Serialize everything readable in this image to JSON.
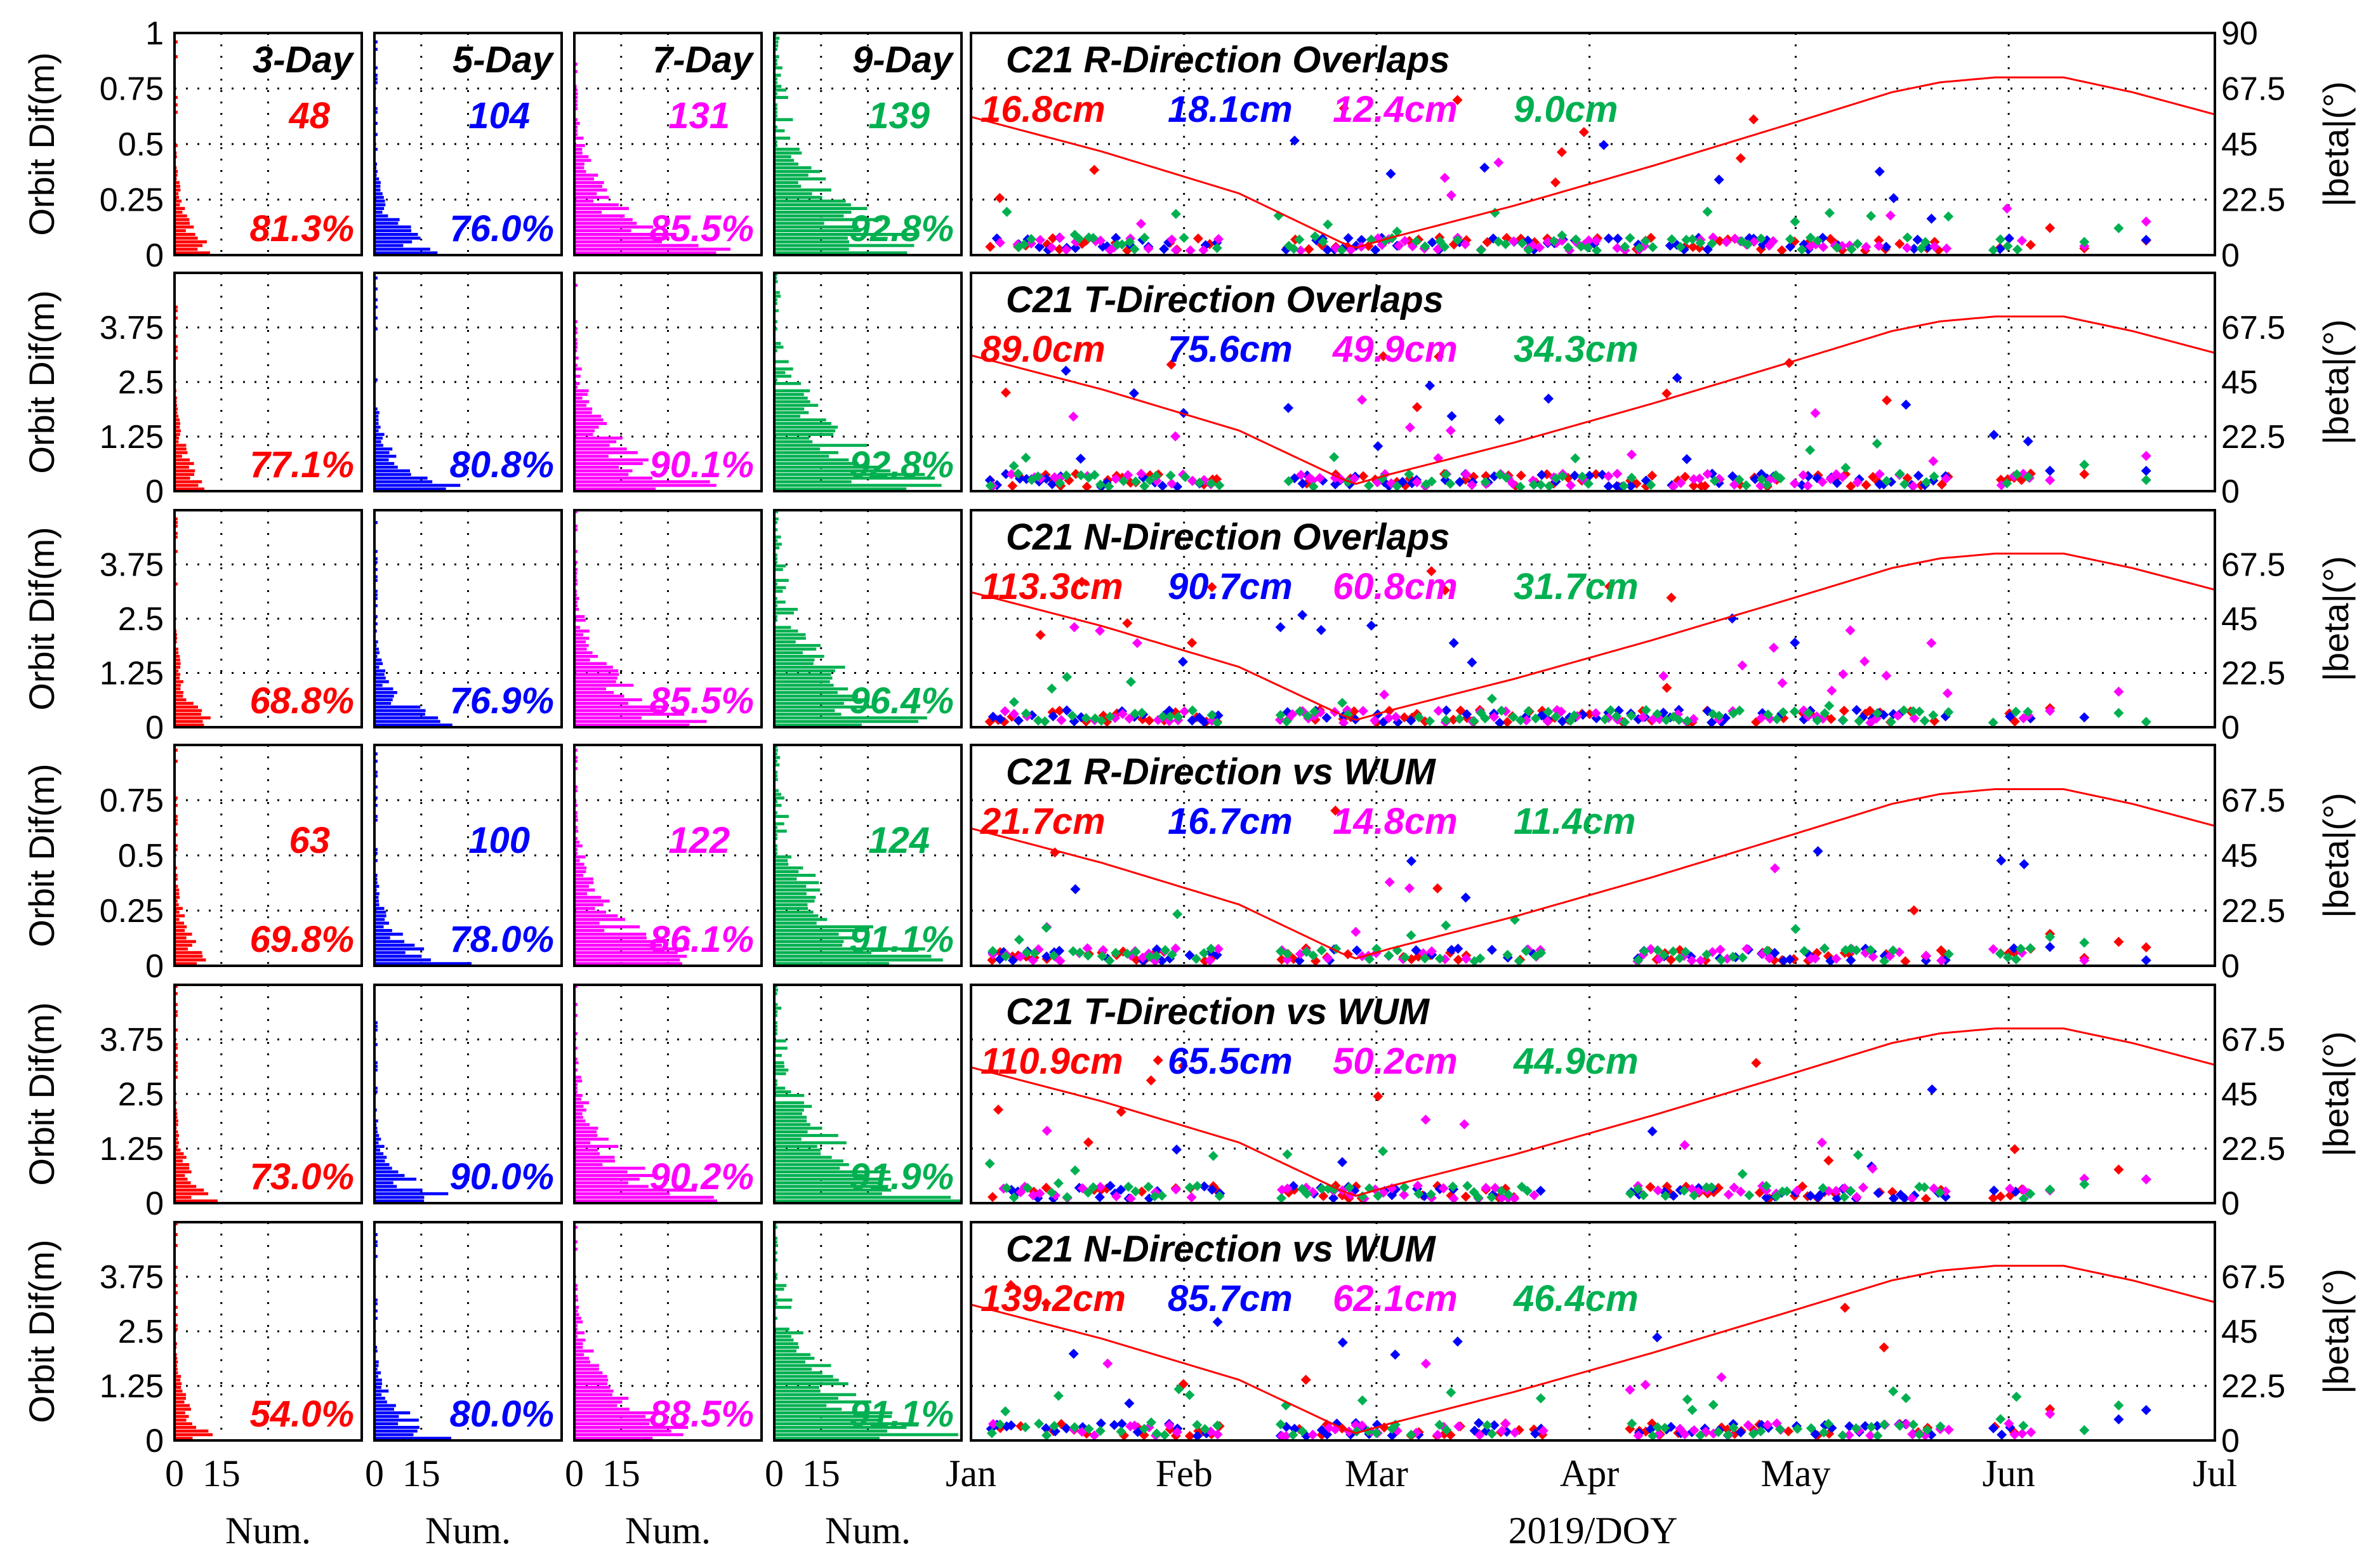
{
  "chart_data": {
    "type": "scatter",
    "colors": {
      "3-Day": "#ff0000",
      "5-Day": "#0000ff",
      "7-Day": "#ff00ff",
      "9-Day": "#00b050",
      "beta": "#ff0000"
    },
    "histogram_headers": [
      "3-Day",
      "5-Day",
      "7-Day",
      "9-Day"
    ],
    "histogram_xlabel": "Num.",
    "histogram_xticks": [
      "0",
      "15"
    ],
    "time_xlabel": "2019/DOY",
    "time_xticks": [
      "Jan",
      "Feb",
      "Mar",
      "Apr",
      "May",
      "Jun",
      "Jul"
    ],
    "left_ylabel": "Orbit Dif(m)",
    "right_ylabel": "|beta|(°)",
    "right_yticks": [
      "0",
      "22.5",
      "45",
      "67.5",
      "90"
    ],
    "right_ylim": [
      0,
      90
    ],
    "panels": [
      {
        "title": "C21 R-Direction Overlaps",
        "yticks": [
          "0",
          "0.25",
          "0.5",
          "0.75",
          "1"
        ],
        "ylim": [
          0,
          1
        ],
        "counts": [
          "48",
          "104",
          "131",
          "139"
        ],
        "percents": [
          "81.3%",
          "76.0%",
          "85.5%",
          "92.8%"
        ],
        "rms": [
          "16.8cm",
          "18.1cm",
          "12.4cm",
          "9.0cm"
        ]
      },
      {
        "title": "C21 T-Direction Overlaps",
        "yticks": [
          "0",
          "1.25",
          "2.5",
          "3.75"
        ],
        "ylim": [
          0,
          5
        ],
        "counts": [],
        "percents": [
          "77.1%",
          "80.8%",
          "90.1%",
          "92.8%"
        ],
        "rms": [
          "89.0cm",
          "75.6cm",
          "49.9cm",
          "34.3cm"
        ]
      },
      {
        "title": "C21 N-Direction Overlaps",
        "yticks": [
          "0",
          "1.25",
          "2.5",
          "3.75"
        ],
        "ylim": [
          0,
          5
        ],
        "counts": [],
        "percents": [
          "68.8%",
          "76.9%",
          "85.5%",
          "96.4%"
        ],
        "rms": [
          "113.3cm",
          "90.7cm",
          "60.8cm",
          "31.7cm"
        ]
      },
      {
        "title": "C21 R-Direction vs WUM",
        "yticks": [
          "0",
          "0.25",
          "0.5",
          "0.75"
        ],
        "ylim": [
          0,
          1
        ],
        "counts": [
          "63",
          "100",
          "122",
          "124"
        ],
        "percents": [
          "69.8%",
          "78.0%",
          "86.1%",
          "91.1%"
        ],
        "rms": [
          "21.7cm",
          "16.7cm",
          "14.8cm",
          "11.4cm"
        ]
      },
      {
        "title": "C21 T-Direction vs WUM",
        "yticks": [
          "0",
          "1.25",
          "2.5",
          "3.75"
        ],
        "ylim": [
          0,
          5
        ],
        "counts": [],
        "percents": [
          "73.0%",
          "90.0%",
          "90.2%",
          "91.9%"
        ],
        "rms": [
          "110.9cm",
          "65.5cm",
          "50.2cm",
          "44.9cm"
        ]
      },
      {
        "title": "C21 N-Direction vs WUM",
        "yticks": [
          "0",
          "1.25",
          "2.5",
          "3.75"
        ],
        "ylim": [
          0,
          5
        ],
        "counts": [],
        "percents": [
          "54.0%",
          "80.0%",
          "88.5%",
          "91.1%"
        ],
        "rms": [
          "139.2cm",
          "85.7cm",
          "62.1cm",
          "46.4cm"
        ]
      }
    ],
    "beta_curve": {
      "doy": [
        1,
        20,
        40,
        55,
        57,
        62,
        80,
        100,
        120,
        135,
        142,
        150,
        160,
        170,
        182
      ],
      "beta_deg": [
        56,
        42,
        25,
        5,
        3,
        7,
        20,
        36,
        53,
        66,
        70,
        72,
        72,
        66,
        57
      ]
    }
  }
}
